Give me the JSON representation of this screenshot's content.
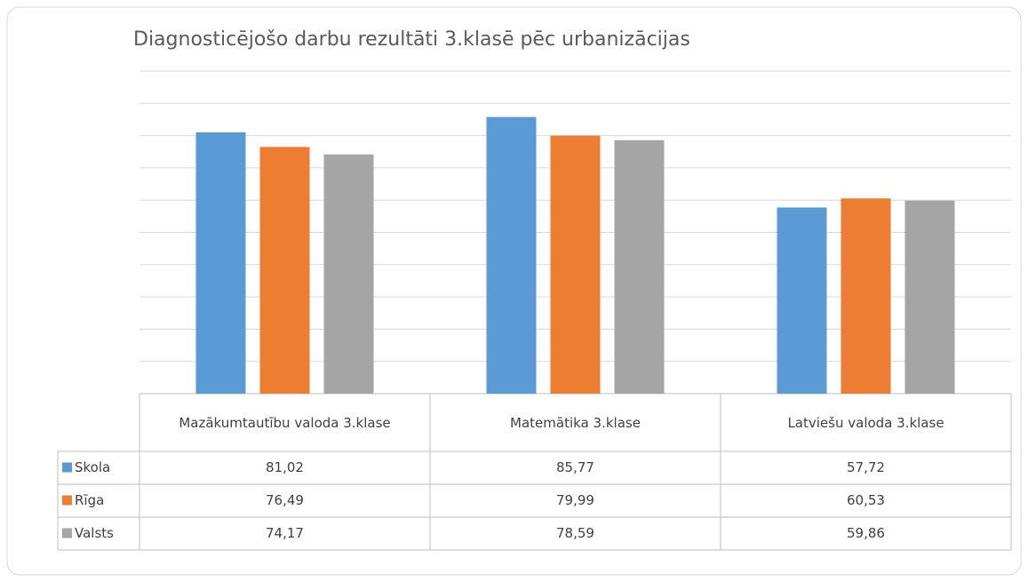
{
  "chart_data": {
    "type": "bar",
    "title": "Diagnosticējošo darbu rezultāti 3.klasē pēc urbanizācijas",
    "categories": [
      "Mazākumtautību valoda 3.klase",
      "Matemātika 3.klase",
      "Latviešu valoda 3.klase"
    ],
    "series": [
      {
        "name": "Skola",
        "color": "#5b9bd5",
        "values": [
          81.02,
          85.77,
          57.72
        ],
        "value_labels": [
          "81,02",
          "85,77",
          "57,72"
        ]
      },
      {
        "name": "Rīga",
        "color": "#ed7d31",
        "values": [
          76.49,
          79.99,
          60.53
        ],
        "value_labels": [
          "76,49",
          "79,99",
          "60,53"
        ]
      },
      {
        "name": "Valsts",
        "color": "#a5a5a5",
        "values": [
          74.17,
          78.59,
          59.86
        ],
        "value_labels": [
          "74,17",
          "78,59",
          "59,86"
        ]
      }
    ],
    "ylim": [
      0,
      100
    ],
    "yticks": [
      0,
      10,
      20,
      30,
      40,
      50,
      60,
      70,
      80,
      90,
      100
    ],
    "grid": true
  }
}
